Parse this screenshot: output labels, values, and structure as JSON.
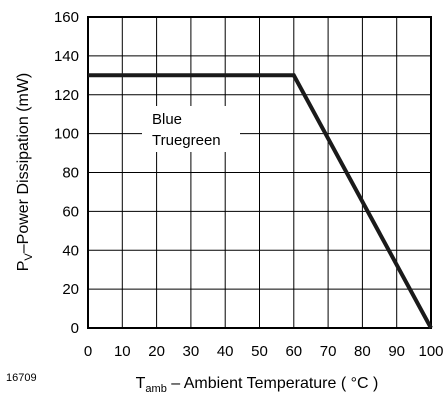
{
  "chart_data": {
    "type": "line",
    "x": [
      0,
      60,
      100
    ],
    "series": [
      {
        "values": [
          130,
          130,
          0
        ]
      }
    ],
    "series_label_lines": [
      "Blue",
      "Truegreen"
    ],
    "xlabel": {
      "main": "T",
      "sub": "amb",
      "rest": " – Ambient Temperature ( °C )"
    },
    "ylabel": {
      "main": "P",
      "sub": "V",
      "rest": "–Power Dissipation (mW)"
    },
    "xlim": [
      0,
      100
    ],
    "ylim": [
      0,
      160
    ],
    "xticks": [
      "0",
      "10",
      "20",
      "30",
      "40",
      "50",
      "60",
      "70",
      "80",
      "90",
      "100"
    ],
    "yticks": [
      "0",
      "20",
      "40",
      "60",
      "80",
      "100",
      "120",
      "140",
      "160"
    ],
    "grid": true,
    "line_color": "#1a1a1a"
  },
  "figure_id": "16709"
}
